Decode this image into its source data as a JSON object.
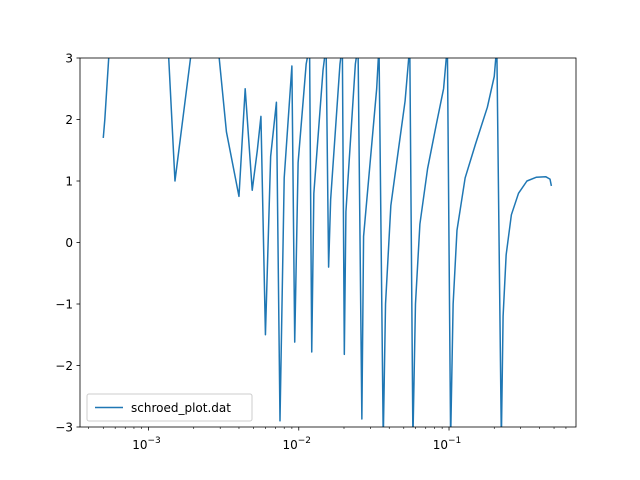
{
  "chart_data": {
    "type": "line",
    "title": "",
    "xlabel": "",
    "ylabel": "",
    "xscale": "log",
    "xlim": [
      0.00035,
      0.7
    ],
    "ylim": [
      -3,
      3
    ],
    "grid": false,
    "legend": {
      "placement": "lower-left"
    },
    "x_ticks": [
      {
        "value": 0.001,
        "base": "10",
        "exp": "−3"
      },
      {
        "value": 0.01,
        "base": "10",
        "exp": "−2"
      },
      {
        "value": 0.1,
        "base": "10",
        "exp": "−1"
      }
    ],
    "y_ticks": [
      {
        "value": 3,
        "label": "3"
      },
      {
        "value": 2,
        "label": "2"
      },
      {
        "value": 1,
        "label": "1"
      },
      {
        "value": 0,
        "label": "0"
      },
      {
        "value": -1,
        "label": "−1"
      },
      {
        "value": -2,
        "label": "−2"
      },
      {
        "value": -3,
        "label": "−3"
      }
    ],
    "series": [
      {
        "name": "schroed_plot.dat",
        "color": "#1f77b4",
        "points": [
          [
            0.0005,
            1.7
          ],
          [
            0.000512,
            2.0
          ],
          [
            0.00055,
            3.2
          ],
          [
            0.00135,
            3.2
          ],
          [
            0.0015,
            1.0
          ],
          [
            0.00195,
            3.2
          ],
          [
            0.0029,
            3.2
          ],
          [
            0.0033,
            1.8
          ],
          [
            0.004,
            0.75
          ],
          [
            0.0044,
            2.5
          ],
          [
            0.0049,
            0.85
          ],
          [
            0.0053,
            1.5
          ],
          [
            0.0056,
            2.05
          ],
          [
            0.006,
            -1.5
          ],
          [
            0.0065,
            1.4
          ],
          [
            0.0071,
            2.28
          ],
          [
            0.0075,
            -2.9
          ],
          [
            0.008,
            1.05
          ],
          [
            0.009,
            2.87
          ],
          [
            0.0094,
            -1.62
          ],
          [
            0.0099,
            1.3
          ],
          [
            0.0112,
            2.9
          ],
          [
            0.0118,
            3.2
          ],
          [
            0.0122,
            -1.78
          ],
          [
            0.0126,
            0.8
          ],
          [
            0.0145,
            2.8
          ],
          [
            0.0152,
            3.2
          ],
          [
            0.0158,
            -0.4
          ],
          [
            0.0163,
            0.7
          ],
          [
            0.0188,
            2.9
          ],
          [
            0.0195,
            3.2
          ],
          [
            0.0201,
            -1.82
          ],
          [
            0.0206,
            0.5
          ],
          [
            0.0238,
            2.9
          ],
          [
            0.0248,
            3.2
          ],
          [
            0.0263,
            -2.87
          ],
          [
            0.027,
            0.1
          ],
          [
            0.033,
            2.5
          ],
          [
            0.0342,
            3.2
          ],
          [
            0.0365,
            -3.2
          ],
          [
            0.0378,
            -1.0
          ],
          [
            0.041,
            0.6
          ],
          [
            0.046,
            1.5
          ],
          [
            0.051,
            2.3
          ],
          [
            0.0548,
            3.2
          ],
          [
            0.0575,
            -3.2
          ],
          [
            0.0598,
            -1.0
          ],
          [
            0.064,
            0.3
          ],
          [
            0.072,
            1.2
          ],
          [
            0.082,
            1.9
          ],
          [
            0.092,
            2.5
          ],
          [
            0.0975,
            3.2
          ],
          [
            0.1025,
            -3.2
          ],
          [
            0.1065,
            -1.0
          ],
          [
            0.113,
            0.2
          ],
          [
            0.128,
            1.05
          ],
          [
            0.15,
            1.6
          ],
          [
            0.18,
            2.2
          ],
          [
            0.2,
            2.7
          ],
          [
            0.208,
            3.2
          ],
          [
            0.223,
            -3.2
          ],
          [
            0.229,
            -1.2
          ],
          [
            0.24,
            -0.2
          ],
          [
            0.26,
            0.45
          ],
          [
            0.29,
            0.8
          ],
          [
            0.33,
            1.0
          ],
          [
            0.38,
            1.06
          ],
          [
            0.44,
            1.07
          ],
          [
            0.47,
            1.03
          ],
          [
            0.48,
            0.92
          ]
        ]
      }
    ]
  }
}
